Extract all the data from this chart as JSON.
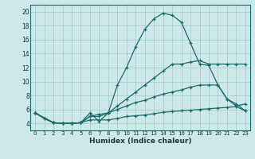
{
  "xlabel": "Humidex (Indice chaleur)",
  "background_color": "#cde8e8",
  "grid_color": "#aacccc",
  "line_color": "#1a6b6b",
  "xlim": [
    -0.5,
    23.5
  ],
  "ylim": [
    3,
    21
  ],
  "yticks": [
    4,
    6,
    8,
    10,
    12,
    14,
    16,
    18,
    20
  ],
  "xticks": [
    0,
    1,
    2,
    3,
    4,
    5,
    6,
    7,
    8,
    9,
    10,
    11,
    12,
    13,
    14,
    15,
    16,
    17,
    18,
    19,
    20,
    21,
    22,
    23
  ],
  "series": [
    {
      "x": [
        0,
        1,
        2,
        3,
        4,
        5,
        6,
        7,
        8,
        9,
        10,
        11,
        12,
        13,
        14,
        15,
        16,
        17,
        18,
        19,
        20,
        21,
        22,
        23
      ],
      "y": [
        5.5,
        4.7,
        4.1,
        4.0,
        4.0,
        4.1,
        5.5,
        4.3,
        5.5,
        9.5,
        12.0,
        15.0,
        17.5,
        19.0,
        19.8,
        19.5,
        18.5,
        15.5,
        12.5,
        12.3,
        9.5,
        7.5,
        6.8,
        5.8
      ]
    },
    {
      "x": [
        0,
        1,
        2,
        3,
        4,
        5,
        6,
        7,
        8,
        9,
        10,
        11,
        12,
        13,
        14,
        15,
        16,
        17,
        18,
        19,
        20,
        21,
        22,
        23
      ],
      "y": [
        5.5,
        4.7,
        4.1,
        4.0,
        4.0,
        4.1,
        5.0,
        5.0,
        5.5,
        6.5,
        7.5,
        8.5,
        9.5,
        10.5,
        11.5,
        12.5,
        12.5,
        12.8,
        13.0,
        12.5,
        12.5,
        12.5,
        12.5,
        12.5
      ]
    },
    {
      "x": [
        0,
        2,
        3,
        4,
        5,
        6,
        7,
        8,
        9,
        10,
        11,
        12,
        13,
        14,
        15,
        16,
        17,
        18,
        19,
        20,
        21,
        22,
        23
      ],
      "y": [
        5.5,
        4.1,
        4.0,
        4.0,
        4.1,
        5.0,
        5.3,
        5.5,
        6.0,
        6.5,
        7.0,
        7.3,
        7.8,
        8.2,
        8.5,
        8.8,
        9.2,
        9.5,
        9.5,
        9.5,
        7.5,
        6.5,
        6.8
      ]
    },
    {
      "x": [
        0,
        2,
        3,
        4,
        5,
        6,
        7,
        8,
        9,
        10,
        11,
        12,
        13,
        14,
        15,
        16,
        17,
        18,
        19,
        20,
        21,
        22,
        23
      ],
      "y": [
        5.5,
        4.1,
        4.0,
        4.0,
        4.1,
        4.5,
        4.5,
        4.5,
        4.7,
        5.0,
        5.1,
        5.2,
        5.4,
        5.6,
        5.7,
        5.8,
        5.9,
        6.0,
        6.1,
        6.2,
        6.3,
        6.4,
        5.8
      ]
    }
  ]
}
